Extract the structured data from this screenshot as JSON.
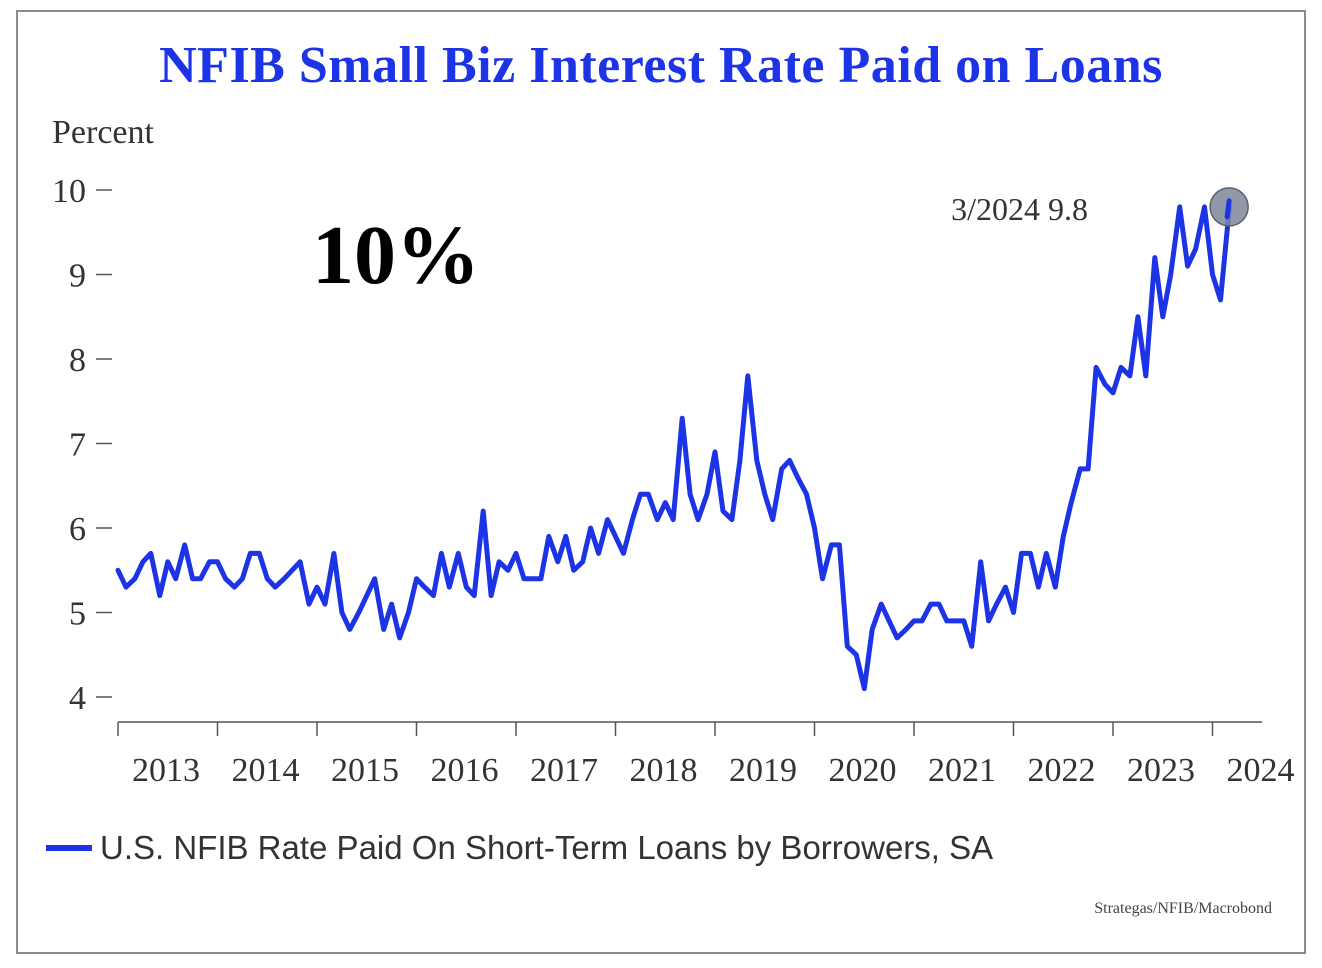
{
  "chart_data": {
    "type": "line",
    "title": "NFIB Small Biz Interest Rate Paid on Loans",
    "ylabel": "Percent",
    "xlabel": "",
    "note": "10%",
    "source": "Strategas/NFIB/Macrobond",
    "ylim": [
      4,
      10
    ],
    "yticks": [
      "4",
      "5",
      "6",
      "7",
      "8",
      "9",
      "10"
    ],
    "xlim": [
      2013,
      2024.5
    ],
    "xticks": [
      "2013",
      "2014",
      "2015",
      "2016",
      "2017",
      "2018",
      "2019",
      "2020",
      "2021",
      "2022",
      "2023",
      "2024"
    ],
    "grid": false,
    "legend_position": "bottom-left",
    "line_color": "#1c33e6",
    "annotation": {
      "text": "3/2024 9.8",
      "x": 2024.167,
      "y": 9.8,
      "marker_color": "#7d8799"
    },
    "series": [
      {
        "name": "U.S. NFIB Rate Paid On Short-Term Loans by Borrowers, SA",
        "points": [
          [
            2013.0,
            5.5
          ],
          [
            2013.08,
            5.3
          ],
          [
            2013.17,
            5.4
          ],
          [
            2013.25,
            5.6
          ],
          [
            2013.33,
            5.7
          ],
          [
            2013.42,
            5.2
          ],
          [
            2013.5,
            5.6
          ],
          [
            2013.58,
            5.4
          ],
          [
            2013.67,
            5.8
          ],
          [
            2013.75,
            5.4
          ],
          [
            2013.83,
            5.4
          ],
          [
            2013.92,
            5.6
          ],
          [
            2014.0,
            5.6
          ],
          [
            2014.08,
            5.4
          ],
          [
            2014.17,
            5.3
          ],
          [
            2014.25,
            5.4
          ],
          [
            2014.33,
            5.7
          ],
          [
            2014.42,
            5.7
          ],
          [
            2014.5,
            5.4
          ],
          [
            2014.58,
            5.3
          ],
          [
            2014.67,
            5.4
          ],
          [
            2014.75,
            5.5
          ],
          [
            2014.83,
            5.6
          ],
          [
            2014.92,
            5.1
          ],
          [
            2015.0,
            5.3
          ],
          [
            2015.08,
            5.1
          ],
          [
            2015.17,
            5.7
          ],
          [
            2015.25,
            5.0
          ],
          [
            2015.33,
            4.8
          ],
          [
            2015.42,
            5.0
          ],
          [
            2015.5,
            5.2
          ],
          [
            2015.58,
            5.4
          ],
          [
            2015.67,
            4.8
          ],
          [
            2015.75,
            5.1
          ],
          [
            2015.83,
            4.7
          ],
          [
            2015.92,
            5.0
          ],
          [
            2016.0,
            5.4
          ],
          [
            2016.08,
            5.3
          ],
          [
            2016.17,
            5.2
          ],
          [
            2016.25,
            5.7
          ],
          [
            2016.33,
            5.3
          ],
          [
            2016.42,
            5.7
          ],
          [
            2016.5,
            5.3
          ],
          [
            2016.58,
            5.2
          ],
          [
            2016.67,
            6.2
          ],
          [
            2016.75,
            5.2
          ],
          [
            2016.83,
            5.6
          ],
          [
            2016.92,
            5.5
          ],
          [
            2017.0,
            5.7
          ],
          [
            2017.08,
            5.4
          ],
          [
            2017.17,
            5.4
          ],
          [
            2017.25,
            5.4
          ],
          [
            2017.33,
            5.9
          ],
          [
            2017.42,
            5.6
          ],
          [
            2017.5,
            5.9
          ],
          [
            2017.58,
            5.5
          ],
          [
            2017.67,
            5.6
          ],
          [
            2017.75,
            6.0
          ],
          [
            2017.83,
            5.7
          ],
          [
            2017.92,
            6.1
          ],
          [
            2018.0,
            5.9
          ],
          [
            2018.08,
            5.7
          ],
          [
            2018.17,
            6.1
          ],
          [
            2018.25,
            6.4
          ],
          [
            2018.33,
            6.4
          ],
          [
            2018.42,
            6.1
          ],
          [
            2018.5,
            6.3
          ],
          [
            2018.58,
            6.1
          ],
          [
            2018.67,
            7.3
          ],
          [
            2018.75,
            6.4
          ],
          [
            2018.83,
            6.1
          ],
          [
            2018.92,
            6.4
          ],
          [
            2019.0,
            6.9
          ],
          [
            2019.08,
            6.2
          ],
          [
            2019.17,
            6.1
          ],
          [
            2019.25,
            6.8
          ],
          [
            2019.33,
            7.8
          ],
          [
            2019.42,
            6.8
          ],
          [
            2019.5,
            6.4
          ],
          [
            2019.58,
            6.1
          ],
          [
            2019.67,
            6.7
          ],
          [
            2019.75,
            6.8
          ],
          [
            2019.83,
            6.6
          ],
          [
            2019.92,
            6.4
          ],
          [
            2020.0,
            6.0
          ],
          [
            2020.08,
            5.4
          ],
          [
            2020.17,
            5.8
          ],
          [
            2020.25,
            5.8
          ],
          [
            2020.33,
            4.6
          ],
          [
            2020.42,
            4.5
          ],
          [
            2020.5,
            4.1
          ],
          [
            2020.58,
            4.8
          ],
          [
            2020.67,
            5.1
          ],
          [
            2020.75,
            4.9
          ],
          [
            2020.83,
            4.7
          ],
          [
            2020.92,
            4.8
          ],
          [
            2021.0,
            4.9
          ],
          [
            2021.08,
            4.9
          ],
          [
            2021.17,
            5.1
          ],
          [
            2021.25,
            5.1
          ],
          [
            2021.33,
            4.9
          ],
          [
            2021.42,
            4.9
          ],
          [
            2021.5,
            4.9
          ],
          [
            2021.58,
            4.6
          ],
          [
            2021.67,
            5.6
          ],
          [
            2021.75,
            4.9
          ],
          [
            2021.83,
            5.1
          ],
          [
            2021.92,
            5.3
          ],
          [
            2022.0,
            5.0
          ],
          [
            2022.08,
            5.7
          ],
          [
            2022.17,
            5.7
          ],
          [
            2022.25,
            5.3
          ],
          [
            2022.33,
            5.7
          ],
          [
            2022.42,
            5.3
          ],
          [
            2022.5,
            5.9
          ],
          [
            2022.58,
            6.3
          ],
          [
            2022.67,
            6.7
          ],
          [
            2022.75,
            6.7
          ],
          [
            2022.83,
            7.9
          ],
          [
            2022.92,
            7.7
          ],
          [
            2023.0,
            7.6
          ],
          [
            2023.08,
            7.9
          ],
          [
            2023.17,
            7.8
          ],
          [
            2023.25,
            8.5
          ],
          [
            2023.33,
            7.8
          ],
          [
            2023.42,
            9.2
          ],
          [
            2023.5,
            8.5
          ],
          [
            2023.58,
            9.0
          ],
          [
            2023.67,
            9.8
          ],
          [
            2023.75,
            9.1
          ],
          [
            2023.83,
            9.3
          ],
          [
            2023.92,
            9.8
          ],
          [
            2024.0,
            9.0
          ],
          [
            2024.08,
            8.7
          ],
          [
            2024.17,
            9.8
          ]
        ]
      }
    ]
  }
}
